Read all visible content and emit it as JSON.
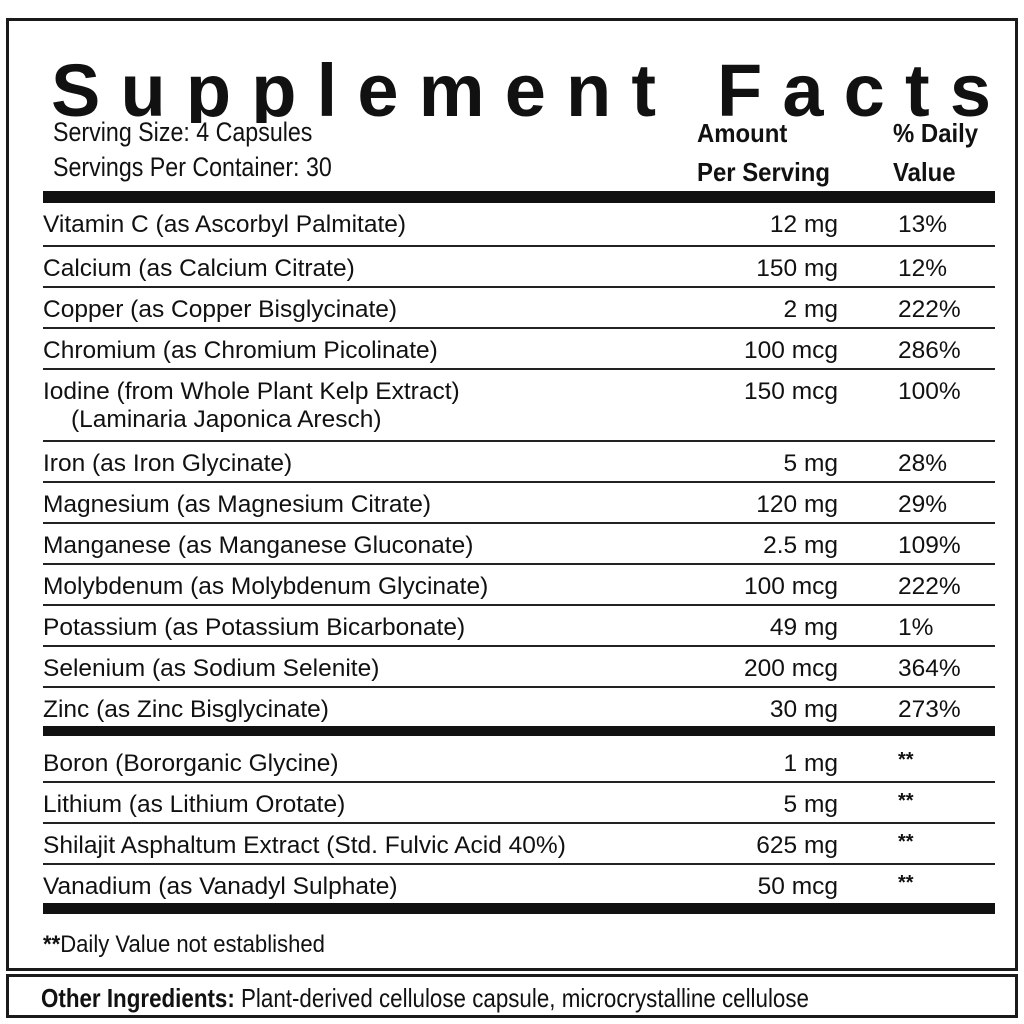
{
  "title": "Supplement Facts",
  "serving_size": "Serving Size: 4 Capsules",
  "servings_per_container": "Servings Per Container: 30",
  "headers": {
    "amount_line1": "Amount",
    "amount_line2": "Per Serving",
    "dv_line1": "% Daily",
    "dv_line2": "Value"
  },
  "group1": [
    {
      "name": "Vitamin C (as Ascorbyl Palmitate)",
      "amount": "12 mg",
      "dv": "13%"
    },
    {
      "name": "Calcium (as Calcium Citrate)",
      "amount": "150 mg",
      "dv": "12%"
    },
    {
      "name": "Copper (as Copper Bisglycinate)",
      "amount": "2 mg",
      "dv": "222%"
    },
    {
      "name": "Chromium (as Chromium Picolinate)",
      "amount": "100 mcg",
      "dv": "286%"
    },
    {
      "name": "Iodine (from Whole Plant Kelp Extract)",
      "name2": "(Laminaria Japonica Aresch)",
      "amount": "150 mcg",
      "dv": "100%"
    },
    {
      "name": "Iron (as Iron Glycinate)",
      "amount": "5 mg",
      "dv": "28%"
    },
    {
      "name": "Magnesium (as Magnesium Citrate)",
      "amount": "120 mg",
      "dv": "29%"
    },
    {
      "name": "Manganese (as Manganese Gluconate)",
      "amount": "2.5 mg",
      "dv": "109%"
    },
    {
      "name": "Molybdenum (as Molybdenum Glycinate)",
      "amount": "100 mcg",
      "dv": "222%"
    },
    {
      "name": "Potassium (as Potassium Bicarbonate)",
      "amount": "49 mg",
      "dv": "1%"
    },
    {
      "name": "Selenium (as Sodium Selenite)",
      "amount": "200 mcg",
      "dv": "364%"
    },
    {
      "name": "Zinc (as Zinc Bisglycinate)",
      "amount": "30 mg",
      "dv": "273%"
    }
  ],
  "group2": [
    {
      "name": "Boron (Bororganic Glycine)",
      "amount": "1 mg",
      "dv": "**"
    },
    {
      "name": "Lithium (as Lithium Orotate)",
      "amount": "5 mg",
      "dv": "**"
    },
    {
      "name": "Shilajit Asphaltum Extract (Std. Fulvic Acid 40%)",
      "amount": "625 mg",
      "dv": "**"
    },
    {
      "name": "Vanadium (as Vanadyl Sulphate)",
      "amount": "50 mcg",
      "dv": "**"
    }
  ],
  "footnote": {
    "marker": "**",
    "text": "Daily Value not established"
  },
  "other_ingredients": {
    "label": "Other Ingredients:",
    "text": " Plant-derived cellulose capsule, microcrystalline cellulose"
  }
}
